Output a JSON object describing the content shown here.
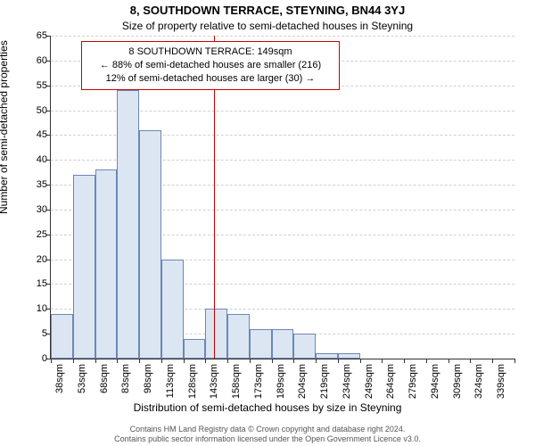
{
  "title": "8, SOUTHDOWN TERRACE, STEYNING, BN44 3YJ",
  "subtitle": "Size of property relative to semi-detached houses in Steyning",
  "ylabel": "Number of semi-detached properties",
  "xlabel": "Distribution of semi-detached houses by size in Steyning",
  "footer_line1": "Contains HM Land Registry data © Crown copyright and database right 2024.",
  "footer_line2": "Contains public sector information licensed under the Open Government Licence v3.0.",
  "chart": {
    "type": "histogram",
    "background_color": "#ffffff",
    "grid_color": "#d0d0d0",
    "axis_color": "#333333",
    "bar_fill": "#dce6f2",
    "bar_border": "#6b87b5",
    "ref_line_color": "#cc0000",
    "ylim": [
      0,
      65
    ],
    "ytick_step": 5,
    "yticks": [
      0,
      5,
      10,
      15,
      20,
      25,
      30,
      35,
      40,
      45,
      50,
      55,
      60,
      65
    ],
    "x_start": 38,
    "x_step": 15,
    "x_unit": "sqm",
    "x_categories": [
      "38sqm",
      "53sqm",
      "68sqm",
      "83sqm",
      "98sqm",
      "113sqm",
      "128sqm",
      "143sqm",
      "158sqm",
      "173sqm",
      "189sqm",
      "204sqm",
      "219sqm",
      "234sqm",
      "249sqm",
      "264sqm",
      "279sqm",
      "294sqm",
      "309sqm",
      "324sqm",
      "339sqm"
    ],
    "values": [
      9,
      37,
      38,
      54,
      46,
      20,
      4,
      10,
      9,
      6,
      6,
      5,
      1,
      1,
      0,
      0,
      0,
      0,
      0,
      0,
      0
    ],
    "bar_width_ratio": 1.0,
    "ref_line_value": 149,
    "title_fontsize": 13,
    "subtitle_fontsize": 12,
    "label_fontsize": 12,
    "tick_fontsize": 11
  },
  "info_box": {
    "border_color": "#cc0000",
    "line1": "8 SOUTHDOWN TERRACE: 149sqm",
    "line2": "← 88% of semi-detached houses are smaller (216)",
    "line3": "12% of semi-detached houses are larger (30) →"
  }
}
